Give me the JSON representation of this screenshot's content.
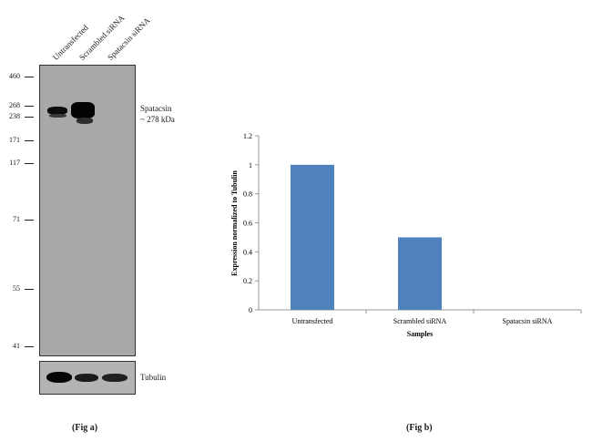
{
  "western_blot": {
    "lanes": [
      "Untransfected",
      "Scrambled siRNA",
      "Spatacsin siRNA"
    ],
    "mw_markers": [
      "460",
      "268",
      "238",
      "171",
      "117",
      "71",
      "55",
      "41"
    ],
    "target_label_line1": "Spatacsin",
    "target_label_line2": "~ 278 kDa",
    "loading_control_label": "Tubulin",
    "caption": "(Fig a)"
  },
  "chart_data": {
    "type": "bar",
    "categories": [
      "Untransfected",
      "Scrambled siRNA",
      "Spatacsin siRNA"
    ],
    "values": [
      1.0,
      0.5,
      0.0
    ],
    "xlabel": "Samples",
    "ylabel": "Expression normalized to Tubulin",
    "ylim": [
      0,
      1.2
    ],
    "yticks": [
      "0",
      "0.2",
      "0.4",
      "0.6",
      "0.8",
      "1",
      "1.2"
    ],
    "bar_color": "#4f81bd",
    "grid": false,
    "caption": "(Fig b)"
  }
}
